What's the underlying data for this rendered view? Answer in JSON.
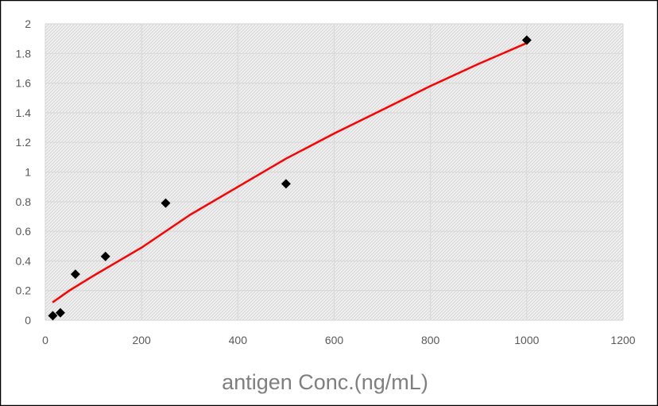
{
  "chart_data": {
    "type": "scatter",
    "xlabel": "antigen Conc.(ng/mL)",
    "ylabel": "",
    "title": "",
    "xlim": [
      0,
      1200
    ],
    "ylim": [
      0,
      2
    ],
    "x_ticks": [
      "0",
      "200",
      "400",
      "600",
      "800",
      "1000",
      "1200"
    ],
    "y_ticks": [
      "0",
      "0.2",
      "0.4",
      "0.6",
      "0.8",
      "1",
      "1.2",
      "1.4",
      "1.6",
      "1.8",
      "2"
    ],
    "grid": true,
    "legend": "none",
    "series": [
      {
        "kind": "points",
        "marker": "diamond",
        "color": "#000000",
        "x": [
          15.6,
          31.25,
          62.5,
          125,
          250,
          500,
          1000
        ],
        "y": [
          0.03,
          0.05,
          0.31,
          0.43,
          0.79,
          0.92,
          1.89
        ]
      },
      {
        "kind": "trendline",
        "color": "#ff0000",
        "x": [
          15,
          50,
          100,
          200,
          300,
          400,
          500,
          600,
          700,
          800,
          900,
          1000
        ],
        "y": [
          0.12,
          0.2,
          0.3,
          0.49,
          0.71,
          0.9,
          1.09,
          1.26,
          1.42,
          1.58,
          1.73,
          1.87
        ]
      }
    ]
  }
}
